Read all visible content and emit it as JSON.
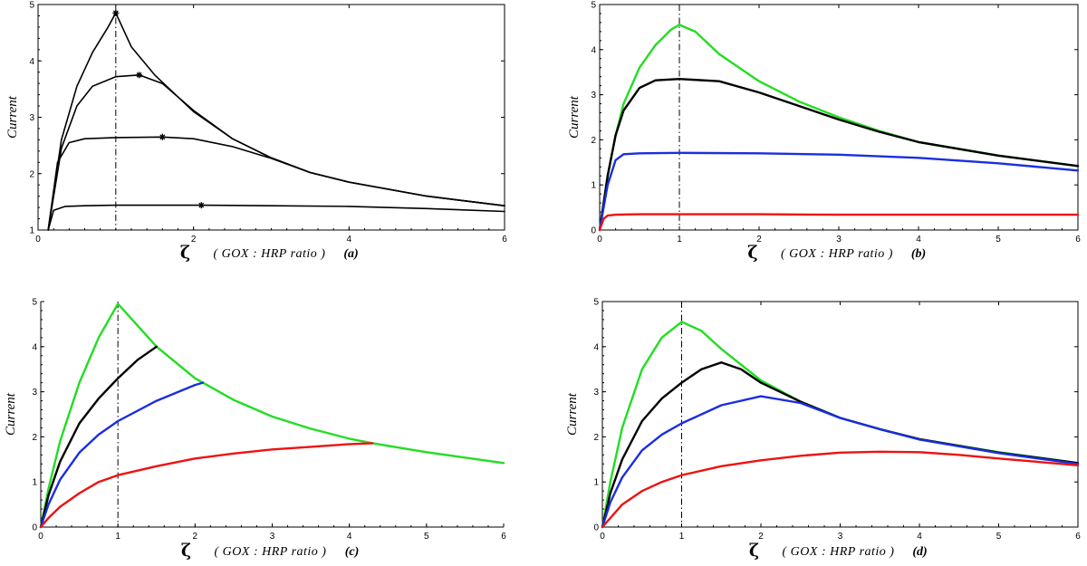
{
  "chart_data": [
    {
      "type": "line",
      "panel_label": "(a)",
      "ylabel": "Current",
      "xlabel_symbol": "ζ",
      "xlabel_text": "( GOX : HRP ratio )",
      "xlim": [
        0,
        6
      ],
      "ylim": [
        1,
        5
      ],
      "xticks": [
        "0",
        "2",
        "4",
        "6"
      ],
      "yticks": [
        "1",
        "2",
        "3",
        "4",
        "5"
      ],
      "vline_x": 1,
      "grid": false,
      "series": [
        {
          "color": "#000000",
          "x": [
            0.13,
            0.3,
            0.5,
            0.7,
            0.9,
            1.0,
            1.2,
            1.5,
            2.0,
            2.5,
            3.0,
            3.5,
            4.0,
            5.0,
            6.0
          ],
          "y": [
            1.0,
            2.6,
            3.55,
            4.15,
            4.6,
            4.85,
            4.25,
            3.75,
            3.1,
            2.62,
            2.28,
            2.02,
            1.85,
            1.6,
            1.43
          ]
        },
        {
          "color": "#000000",
          "x": [
            0.13,
            0.3,
            0.5,
            0.7,
            1.0,
            1.3,
            1.6,
            2.0,
            2.5,
            3.0,
            3.5,
            4.0,
            5.0,
            6.0
          ],
          "y": [
            1.0,
            2.45,
            3.2,
            3.55,
            3.72,
            3.75,
            3.6,
            3.12,
            2.62,
            2.28,
            2.02,
            1.85,
            1.6,
            1.43
          ]
        },
        {
          "color": "#000000",
          "x": [
            0.13,
            0.25,
            0.4,
            0.6,
            1.0,
            1.6,
            2.0,
            2.5,
            3.0,
            3.5,
            4.0,
            5.0,
            6.0
          ],
          "y": [
            1.0,
            2.2,
            2.55,
            2.62,
            2.64,
            2.65,
            2.62,
            2.48,
            2.27,
            2.02,
            1.85,
            1.6,
            1.43
          ]
        },
        {
          "color": "#000000",
          "x": [
            0.13,
            0.2,
            0.35,
            0.6,
            1.0,
            2.1,
            3.0,
            4.0,
            5.0,
            6.0
          ],
          "y": [
            1.0,
            1.35,
            1.42,
            1.43,
            1.44,
            1.44,
            1.43,
            1.42,
            1.38,
            1.33
          ]
        }
      ],
      "markers": {
        "x": [
          1.0,
          1.3,
          1.6,
          2.1
        ],
        "y": [
          4.85,
          3.75,
          2.65,
          1.44
        ]
      }
    },
    {
      "type": "line",
      "panel_label": "(b)",
      "ylabel": "Current",
      "xlabel_symbol": "ζ",
      "xlabel_text": "( GOX : HRP ratio )",
      "xlim": [
        0,
        6
      ],
      "ylim": [
        0,
        5
      ],
      "xticks": [
        "0",
        "1",
        "2",
        "3",
        "4",
        "5",
        "6"
      ],
      "yticks": [
        "0",
        "1",
        "2",
        "3",
        "4",
        "5"
      ],
      "vline_x": 1,
      "grid": false,
      "series": [
        {
          "color": "#22dd22",
          "x": [
            0.0,
            0.1,
            0.2,
            0.3,
            0.5,
            0.7,
            0.9,
            1.0,
            1.2,
            1.5,
            2.0,
            2.5,
            3.0,
            3.5,
            4.0,
            5.0,
            6.0
          ],
          "y": [
            0.0,
            1.2,
            2.1,
            2.8,
            3.6,
            4.1,
            4.45,
            4.55,
            4.4,
            3.9,
            3.3,
            2.85,
            2.5,
            2.2,
            1.95,
            1.65,
            1.42
          ]
        },
        {
          "color": "#000000",
          "x": [
            0.0,
            0.1,
            0.2,
            0.3,
            0.5,
            0.7,
            1.0,
            1.5,
            2.0,
            2.5,
            3.0,
            3.5,
            4.0,
            5.0,
            6.0
          ],
          "y": [
            0.0,
            1.2,
            2.1,
            2.65,
            3.15,
            3.32,
            3.35,
            3.3,
            3.05,
            2.75,
            2.45,
            2.18,
            1.95,
            1.65,
            1.42
          ]
        },
        {
          "color": "#1a2ee0",
          "x": [
            0.0,
            0.1,
            0.2,
            0.3,
            0.5,
            1.0,
            2.0,
            3.0,
            4.0,
            5.0,
            6.0
          ],
          "y": [
            0.0,
            1.0,
            1.55,
            1.68,
            1.7,
            1.71,
            1.7,
            1.67,
            1.6,
            1.48,
            1.32
          ]
        },
        {
          "color": "#ee1111",
          "x": [
            0.0,
            0.05,
            0.1,
            0.2,
            0.5,
            1.0,
            2.0,
            3.0,
            4.0,
            5.0,
            6.0
          ],
          "y": [
            0.0,
            0.25,
            0.32,
            0.34,
            0.35,
            0.35,
            0.35,
            0.34,
            0.34,
            0.34,
            0.34
          ]
        }
      ]
    },
    {
      "type": "line",
      "panel_label": "(c)",
      "ylabel": "Current",
      "xlabel_symbol": "ζ",
      "xlabel_text": "( GOX : HRP ratio )",
      "xlim": [
        0,
        6
      ],
      "ylim": [
        0,
        5
      ],
      "xticks": [
        "0",
        "1",
        "2",
        "3",
        "4",
        "5",
        "6"
      ],
      "yticks": [
        "0",
        "1",
        "2",
        "3",
        "4",
        "5"
      ],
      "vline_x": 1,
      "grid": false,
      "series": [
        {
          "color": "#22dd22",
          "x": [
            0.0,
            0.1,
            0.25,
            0.5,
            0.75,
            1.0,
            1.5,
            2.0,
            2.5,
            3.0,
            3.5,
            4.0,
            4.3,
            5.0,
            6.0
          ],
          "y": [
            0.0,
            0.85,
            1.9,
            3.2,
            4.2,
            4.95,
            4.0,
            3.3,
            2.82,
            2.45,
            2.18,
            1.96,
            1.86,
            1.66,
            1.42
          ]
        },
        {
          "color": "#000000",
          "x": [
            0.0,
            0.1,
            0.25,
            0.5,
            0.75,
            1.0,
            1.25,
            1.5
          ],
          "y": [
            0.0,
            0.7,
            1.45,
            2.3,
            2.85,
            3.3,
            3.7,
            4.0
          ]
        },
        {
          "color": "#1a2ee0",
          "x": [
            0.0,
            0.1,
            0.25,
            0.5,
            0.75,
            1.0,
            1.5,
            2.0,
            2.1
          ],
          "y": [
            0.0,
            0.5,
            1.05,
            1.65,
            2.05,
            2.35,
            2.8,
            3.15,
            3.2
          ]
        },
        {
          "color": "#ee1111",
          "x": [
            0.0,
            0.1,
            0.25,
            0.5,
            0.75,
            1.0,
            1.5,
            2.0,
            2.5,
            3.0,
            3.5,
            4.0,
            4.3
          ],
          "y": [
            0.0,
            0.2,
            0.45,
            0.75,
            1.0,
            1.15,
            1.35,
            1.52,
            1.63,
            1.72,
            1.78,
            1.84,
            1.86
          ]
        }
      ]
    },
    {
      "type": "line",
      "panel_label": "(d)",
      "ylabel": "Current",
      "xlabel_symbol": "ζ",
      "xlabel_text": "( GOX : HRP ratio )",
      "xlim": [
        0,
        6
      ],
      "ylim": [
        0,
        5
      ],
      "xticks": [
        "0",
        "1",
        "2",
        "3",
        "4",
        "5",
        "6"
      ],
      "yticks": [
        "0",
        "1",
        "2",
        "3",
        "4",
        "5"
      ],
      "vline_x": 1,
      "grid": false,
      "series": [
        {
          "color": "#22dd22",
          "x": [
            0.0,
            0.1,
            0.25,
            0.5,
            0.75,
            1.0,
            1.25,
            1.5,
            2.0,
            2.5,
            3.0,
            3.5,
            4.0,
            5.0,
            6.0
          ],
          "y": [
            0.0,
            1.0,
            2.2,
            3.5,
            4.2,
            4.55,
            4.35,
            3.95,
            3.25,
            2.78,
            2.42,
            2.17,
            1.95,
            1.66,
            1.42
          ]
        },
        {
          "color": "#000000",
          "x": [
            0.0,
            0.1,
            0.25,
            0.5,
            0.75,
            1.0,
            1.25,
            1.5,
            1.75,
            2.0,
            2.5,
            3.0,
            3.5,
            4.0,
            5.0,
            6.0
          ],
          "y": [
            0.0,
            0.75,
            1.5,
            2.35,
            2.85,
            3.2,
            3.5,
            3.65,
            3.5,
            3.2,
            2.78,
            2.42,
            2.17,
            1.95,
            1.65,
            1.42
          ]
        },
        {
          "color": "#1a2ee0",
          "x": [
            0.0,
            0.1,
            0.25,
            0.5,
            0.75,
            1.0,
            1.5,
            2.0,
            2.5,
            3.0,
            3.5,
            4.0,
            5.0,
            6.0
          ],
          "y": [
            0.0,
            0.55,
            1.1,
            1.7,
            2.05,
            2.3,
            2.7,
            2.9,
            2.75,
            2.42,
            2.17,
            1.94,
            1.64,
            1.4
          ]
        },
        {
          "color": "#ee1111",
          "x": [
            0.0,
            0.1,
            0.25,
            0.5,
            0.75,
            1.0,
            1.5,
            2.0,
            2.5,
            3.0,
            3.5,
            4.0,
            4.5,
            5.0,
            6.0
          ],
          "y": [
            0.0,
            0.2,
            0.5,
            0.8,
            1.0,
            1.15,
            1.35,
            1.48,
            1.58,
            1.65,
            1.67,
            1.66,
            1.6,
            1.52,
            1.37
          ]
        }
      ]
    }
  ]
}
